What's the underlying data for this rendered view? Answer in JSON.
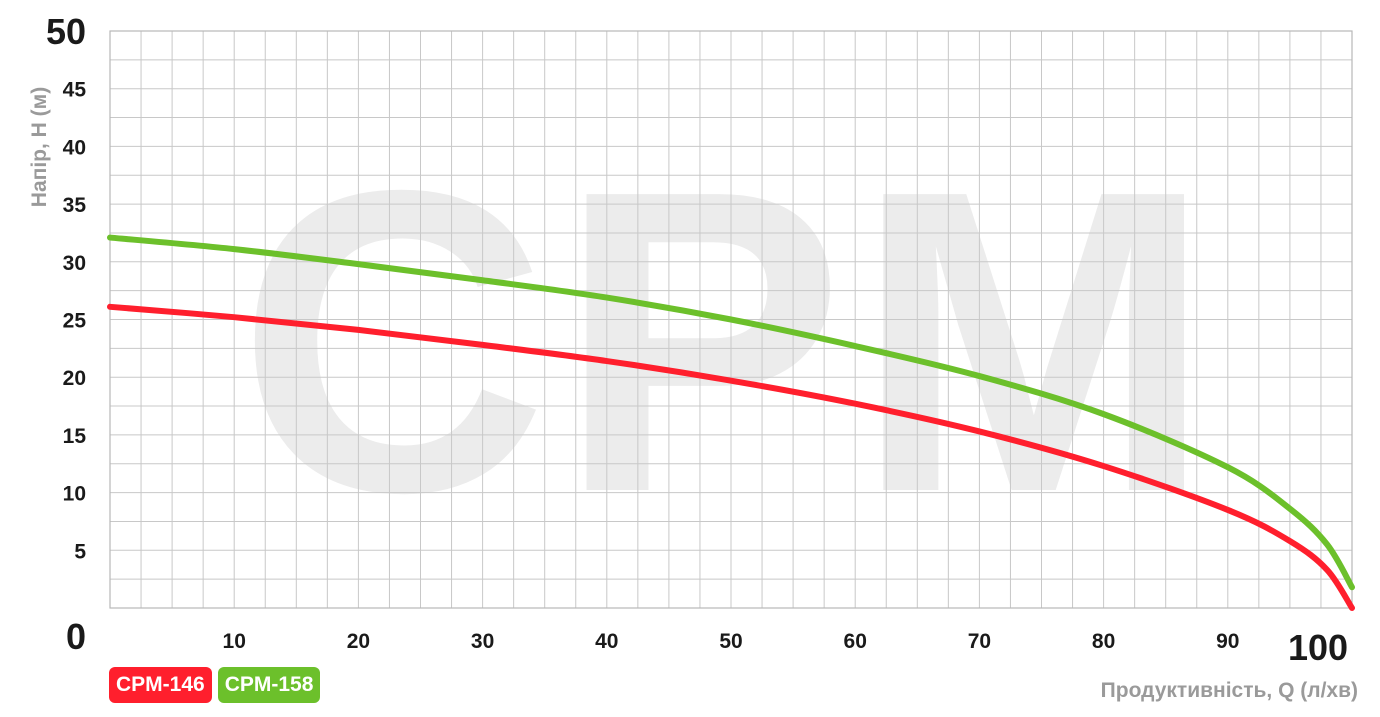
{
  "chart_data": {
    "type": "line",
    "watermark": "CPM",
    "ylabel": "Напір, H (м)",
    "xlabel": "Продуктивність, Q (л/хв)",
    "xlim": [
      0,
      100
    ],
    "ylim": [
      0,
      50
    ],
    "x_ticks": [
      {
        "value": 0,
        "label": "0"
      },
      {
        "value": 10,
        "label": "10"
      },
      {
        "value": 20,
        "label": "20"
      },
      {
        "value": 30,
        "label": "30"
      },
      {
        "value": 40,
        "label": "40"
      },
      {
        "value": 50,
        "label": "50"
      },
      {
        "value": 60,
        "label": "60"
      },
      {
        "value": 70,
        "label": "70"
      },
      {
        "value": 80,
        "label": "80"
      },
      {
        "value": 90,
        "label": "90"
      },
      {
        "value": 100,
        "label": "100"
      }
    ],
    "y_ticks": [
      {
        "value": 5,
        "label": "5"
      },
      {
        "value": 10,
        "label": "10"
      },
      {
        "value": 15,
        "label": "15"
      },
      {
        "value": 20,
        "label": "20"
      },
      {
        "value": 25,
        "label": "25"
      },
      {
        "value": 30,
        "label": "30"
      },
      {
        "value": 35,
        "label": "35"
      },
      {
        "value": 40,
        "label": "40"
      },
      {
        "value": 45,
        "label": "45"
      },
      {
        "value": 50,
        "label": "50"
      }
    ],
    "grid": true,
    "legend_position": "bottom-left",
    "series": [
      {
        "name": "CPM-146",
        "color": "#ff1f2d",
        "points": [
          [
            0,
            26.1
          ],
          [
            10,
            25.2
          ],
          [
            20,
            24.1
          ],
          [
            30,
            22.8
          ],
          [
            40,
            21.4
          ],
          [
            50,
            19.7
          ],
          [
            60,
            17.7
          ],
          [
            70,
            15.3
          ],
          [
            80,
            12.3
          ],
          [
            90,
            8.5
          ],
          [
            95,
            5.8
          ],
          [
            98,
            3.3
          ],
          [
            100,
            0
          ]
        ]
      },
      {
        "name": "CPM-158",
        "color": "#6cc02b",
        "points": [
          [
            0,
            32.1
          ],
          [
            10,
            31.1
          ],
          [
            20,
            29.8
          ],
          [
            30,
            28.4
          ],
          [
            40,
            26.9
          ],
          [
            50,
            25.0
          ],
          [
            60,
            22.7
          ],
          [
            70,
            20.1
          ],
          [
            80,
            16.8
          ],
          [
            90,
            12.2
          ],
          [
            95,
            8.6
          ],
          [
            98,
            5.5
          ],
          [
            100,
            1.8
          ]
        ]
      }
    ]
  }
}
